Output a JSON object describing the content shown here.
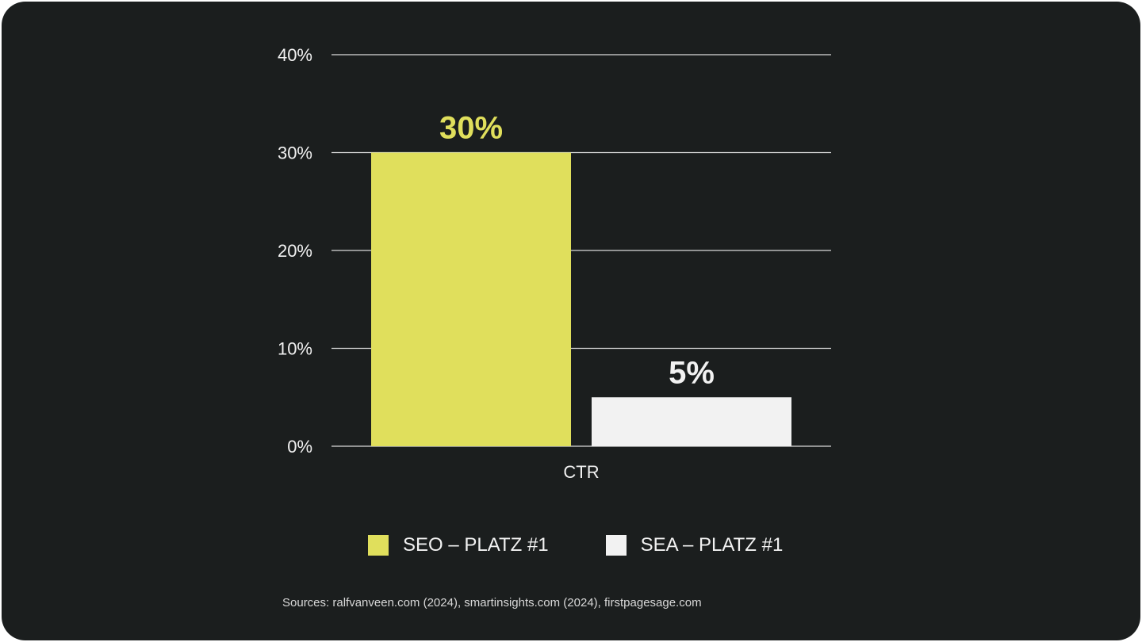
{
  "title_fragment": "",
  "chart_data": {
    "type": "bar",
    "categories": [
      "CTR"
    ],
    "series": [
      {
        "name": "SEO – PLATZ #1",
        "values": [
          30
        ],
        "color": "#e0df5c",
        "label": "30%"
      },
      {
        "name": "SEA – PLATZ #1",
        "values": [
          5
        ],
        "color": "#f2f2f2",
        "label": "5%"
      }
    ],
    "ylim": [
      0,
      40
    ],
    "yticks": [
      0,
      10,
      20,
      30,
      40
    ],
    "ytick_labels": [
      "0%",
      "10%",
      "20%",
      "30%",
      "40%"
    ],
    "xlabel": "",
    "ylabel": "",
    "grid": true,
    "legend_position": "bottom"
  },
  "source_text": "Sources: ralfvanveen.com (2024), smartinsights.com (2024), firstpagesage.com"
}
